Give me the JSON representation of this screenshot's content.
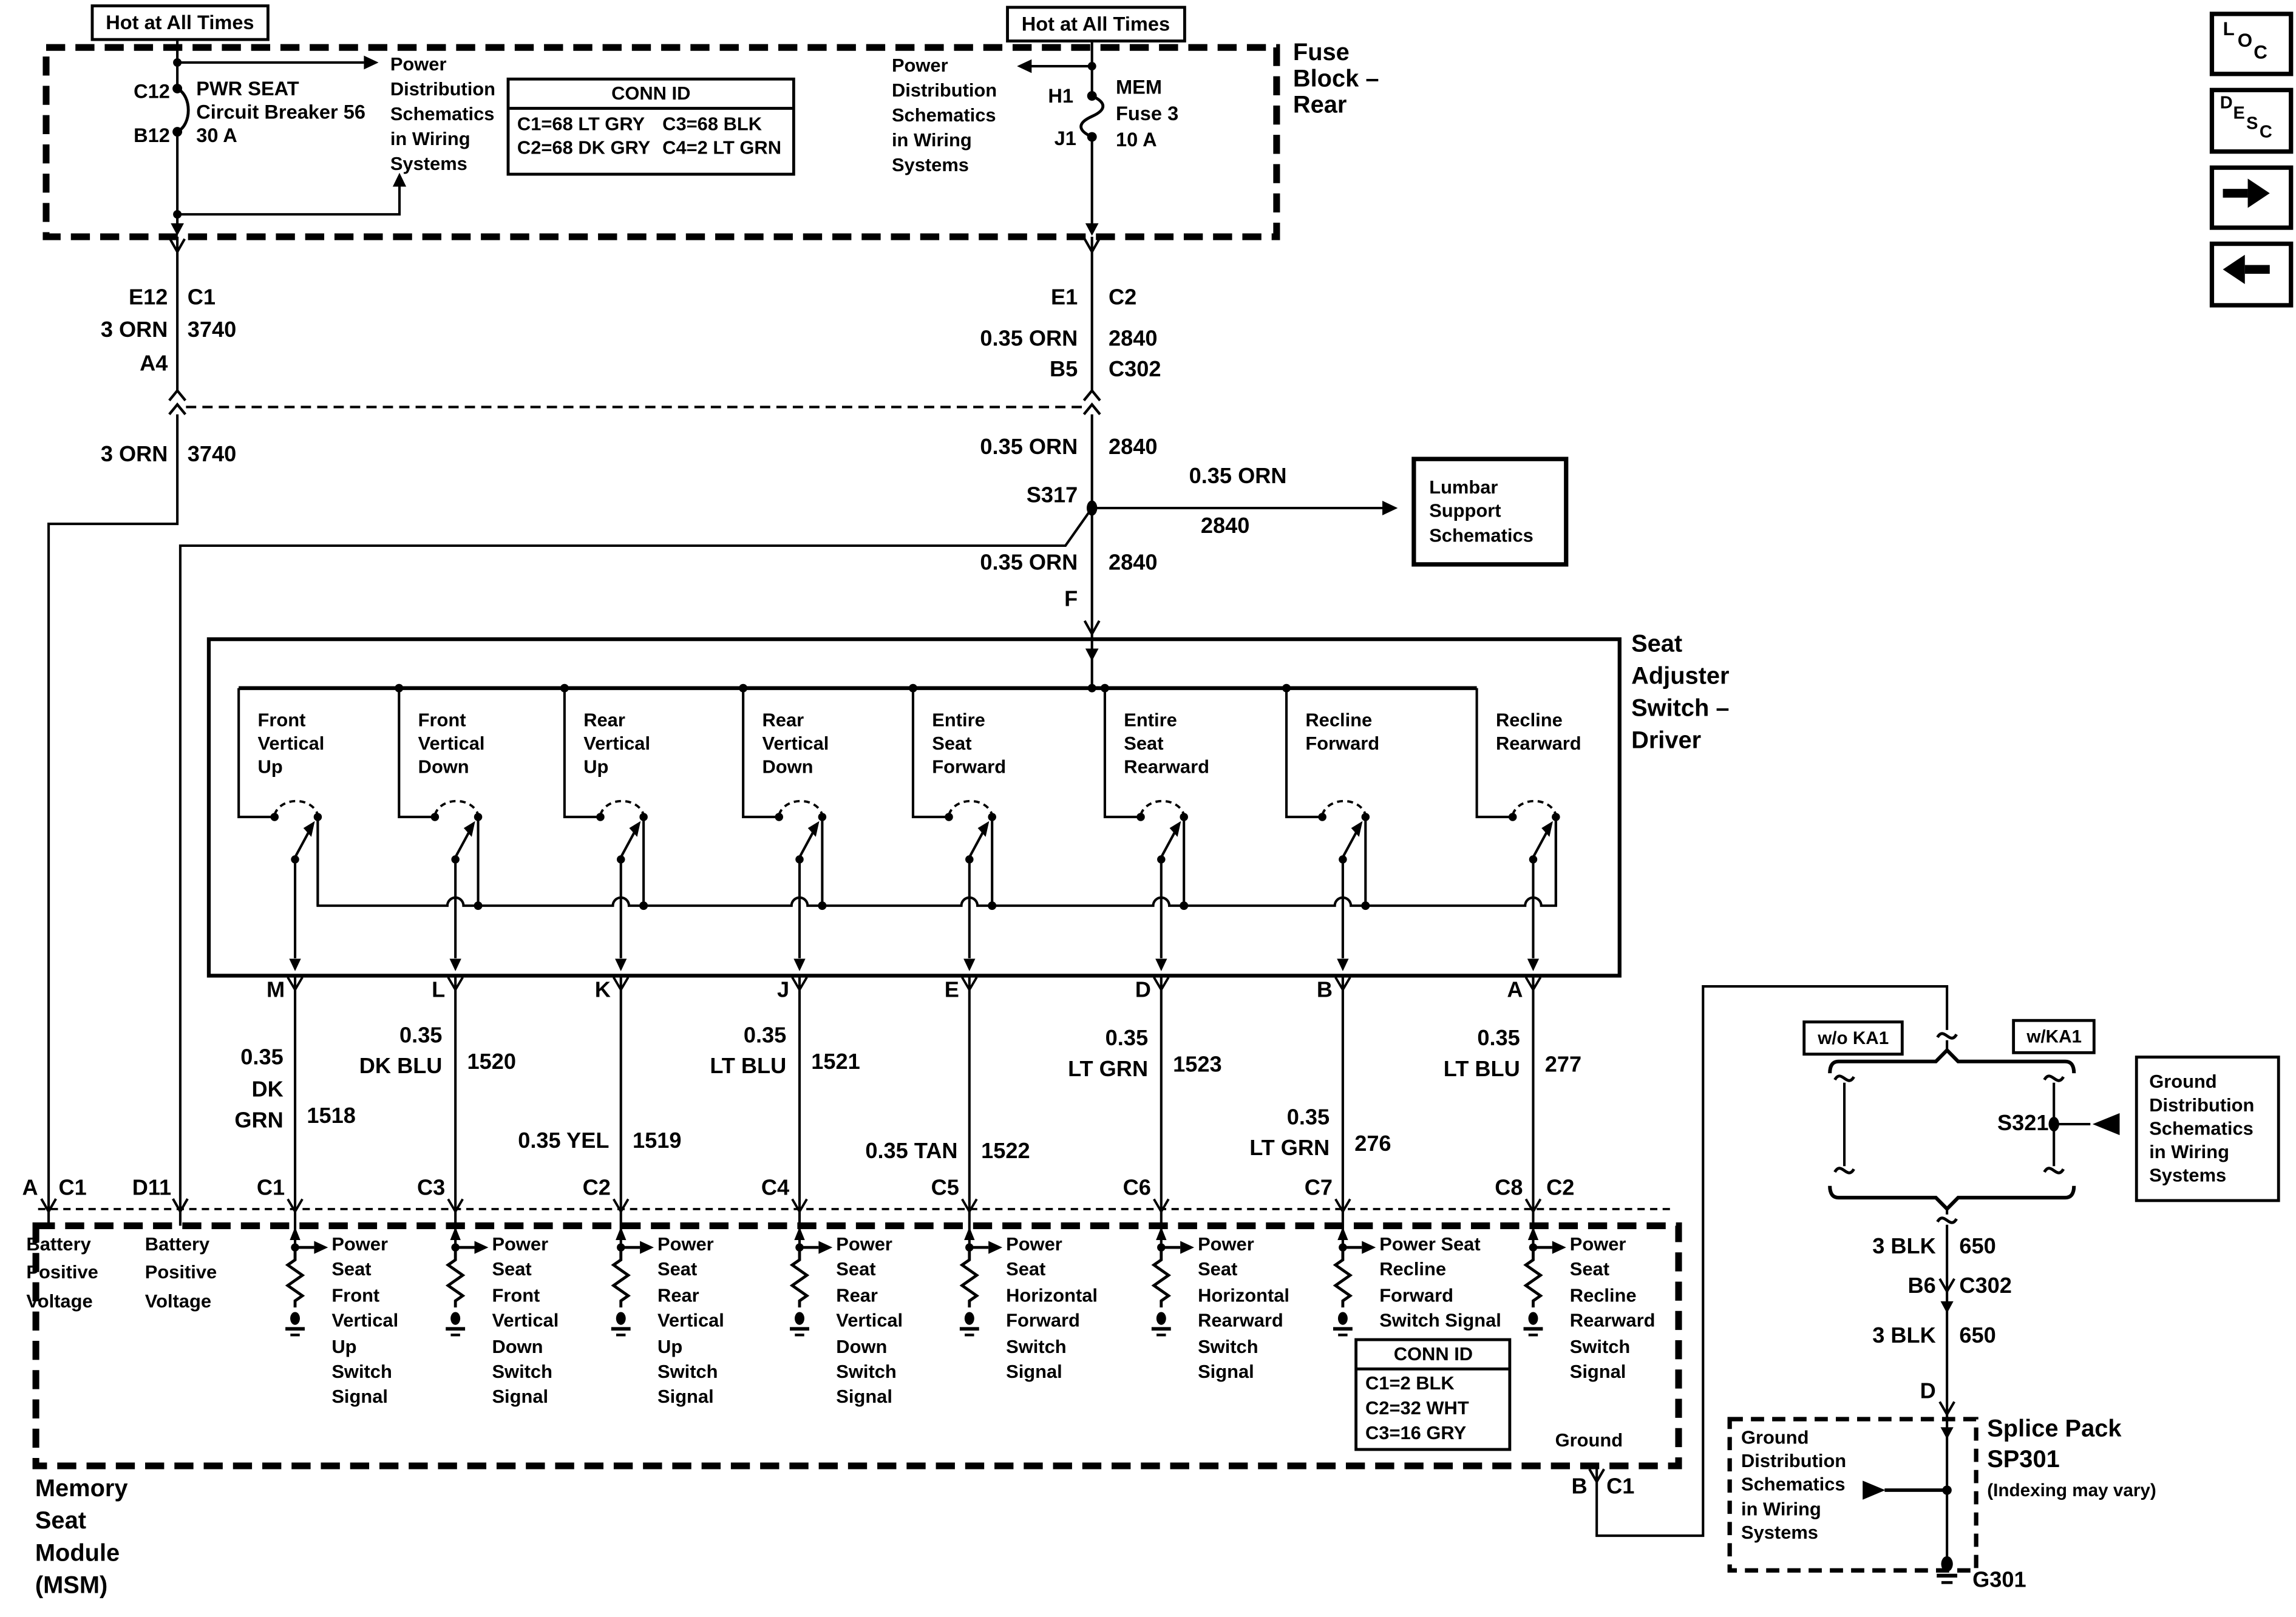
{
  "nav": {
    "loc": [
      "L",
      "O",
      "C"
    ],
    "desc": [
      "D",
      "E",
      "S",
      "C"
    ]
  },
  "fuse_block": {
    "hot_left": "Hot at All Times",
    "hot_right": "Hot at All Times",
    "title": "Fuse\nBlock –\nRear",
    "breaker_pin_top": "C12",
    "breaker_pin_bot": "B12",
    "breaker_name": "PWR SEAT\nCircuit Breaker 56\n30 A",
    "fuse_pin_top": "H1",
    "fuse_pin_bot": "J1",
    "fuse_name": "MEM\nFuse 3\n10 A",
    "ref_left": "Power\nDistribution\nSchematics\nin Wiring\nSystems",
    "ref_right": "Power\nDistribution\nSchematics\nin Wiring\nSystems",
    "conn_id": {
      "title": "CONN ID",
      "r1c1": "C1=68 LT GRY",
      "r1c2": "C3=68 BLK",
      "r2c1": "C2=68 DK GRY",
      "r2c2": "C4=2 LT GRN"
    }
  },
  "left_wire": {
    "pin1": "E12",
    "conn1": "C1",
    "gauge1": "3 ORN",
    "ckt1": "3740",
    "pin2": "A4",
    "gauge2": "3 ORN",
    "ckt2": "3740"
  },
  "right_wire": {
    "pin1": "E1",
    "conn1": "C2",
    "gauge1": "0.35 ORN",
    "ckt1": "2840",
    "pin2": "B5",
    "conn2": "C302",
    "gauge2": "0.35 ORN",
    "ckt2": "2840",
    "splice": "S317",
    "branch_gauge": "0.35 ORN",
    "branch_ckt": "2840",
    "gauge3": "0.35 ORN",
    "ckt3": "2840",
    "pin3": "F",
    "lumbar_ref": "Lumbar\nSupport\nSchematics"
  },
  "switch_box": {
    "title": "Seat\nAdjuster\nSwitch –\nDriver",
    "switches": [
      {
        "name": "Front\nVertical\nUp",
        "pin": "M",
        "gauge": "0.35\nDK\nGRN",
        "ckt": "1518",
        "msm_pin": "C1"
      },
      {
        "name": "Front\nVertical\nDown",
        "pin": "L",
        "gauge": "0.35\nDK BLU",
        "ckt": "1520",
        "msm_pin": "C3"
      },
      {
        "name": "Rear\nVertical\nUp",
        "pin": "K",
        "gauge": "0.35 YEL",
        "ckt": "1519",
        "msm_pin": "C2"
      },
      {
        "name": "Rear\nVertical\nDown",
        "pin": "J",
        "gauge": "0.35\nLT BLU",
        "ckt": "1521",
        "msm_pin": "C4"
      },
      {
        "name": "Entire\nSeat\nForward",
        "pin": "E",
        "gauge": "0.35 TAN",
        "ckt": "1522",
        "msm_pin": "C5"
      },
      {
        "name": "Entire\nSeat\nRearward",
        "pin": "D",
        "gauge": "0.35\nLT GRN",
        "ckt": "1523",
        "msm_pin": "C6"
      },
      {
        "name": "Recline\nForward",
        "pin": "B",
        "gauge": "0.35\nLT GRN",
        "ckt": "276",
        "msm_pin": "C7"
      },
      {
        "name": "Recline\nRearward",
        "pin": "A",
        "gauge": "0.35\nLT BLU",
        "ckt": "277",
        "msm_pin": "C8",
        "msm_conn": "C2"
      }
    ]
  },
  "msm": {
    "title": "Memory\nSeat\nModule\n(MSM)",
    "pin_a": "A",
    "conn_a": "C1",
    "pin_d11": "D11",
    "battery1": "Battery\nPositive\nVoltage",
    "battery2": "Battery\nPositive\nVoltage",
    "signals": [
      "Power\nSeat\nFront\nVertical\nUp\nSwitch\nSignal",
      "Power\nSeat\nFront\nVertical\nDown\nSwitch\nSignal",
      "Power\nSeat\nRear\nVertical\nUp\nSwitch\nSignal",
      "Power\nSeat\nRear\nVertical\nDown\nSwitch\nSignal",
      "Power\nSeat\nHorizontal\nForward\nSwitch\nSignal",
      "Power\nSeat\nHorizontal\nRearward\nSwitch\nSignal",
      "Power Seat\nRecline\nForward\nSwitch Signal",
      "Power\nSeat\nRecline\nRearward\nSwitch\nSignal"
    ],
    "conn_id": {
      "title": "CONN ID",
      "rows": [
        "C1=2 BLK",
        "C2=32 WHT",
        "C3=16 GRY"
      ]
    },
    "ground_label": "Ground",
    "ground_pin": "B",
    "ground_conn": "C1"
  },
  "ground_path": {
    "wo_ka1": "w/o KA1",
    "w_ka1": "w/KA1",
    "splice": "S321",
    "ref_right": "Ground\nDistribution\nSchematics\nin Wiring\nSystems",
    "gauge1": "3 BLK",
    "ckt1": "650",
    "pin_b6": "B6",
    "conn_c302": "C302",
    "gauge2": "3 BLK",
    "ckt2": "650",
    "pin_d": "D",
    "splice_pack": "Splice Pack\nSP301",
    "indexing": "(Indexing may vary)",
    "ref_bottom": "Ground\nDistribution\nSchematics\nin Wiring\nSystems",
    "g301": "G301"
  }
}
